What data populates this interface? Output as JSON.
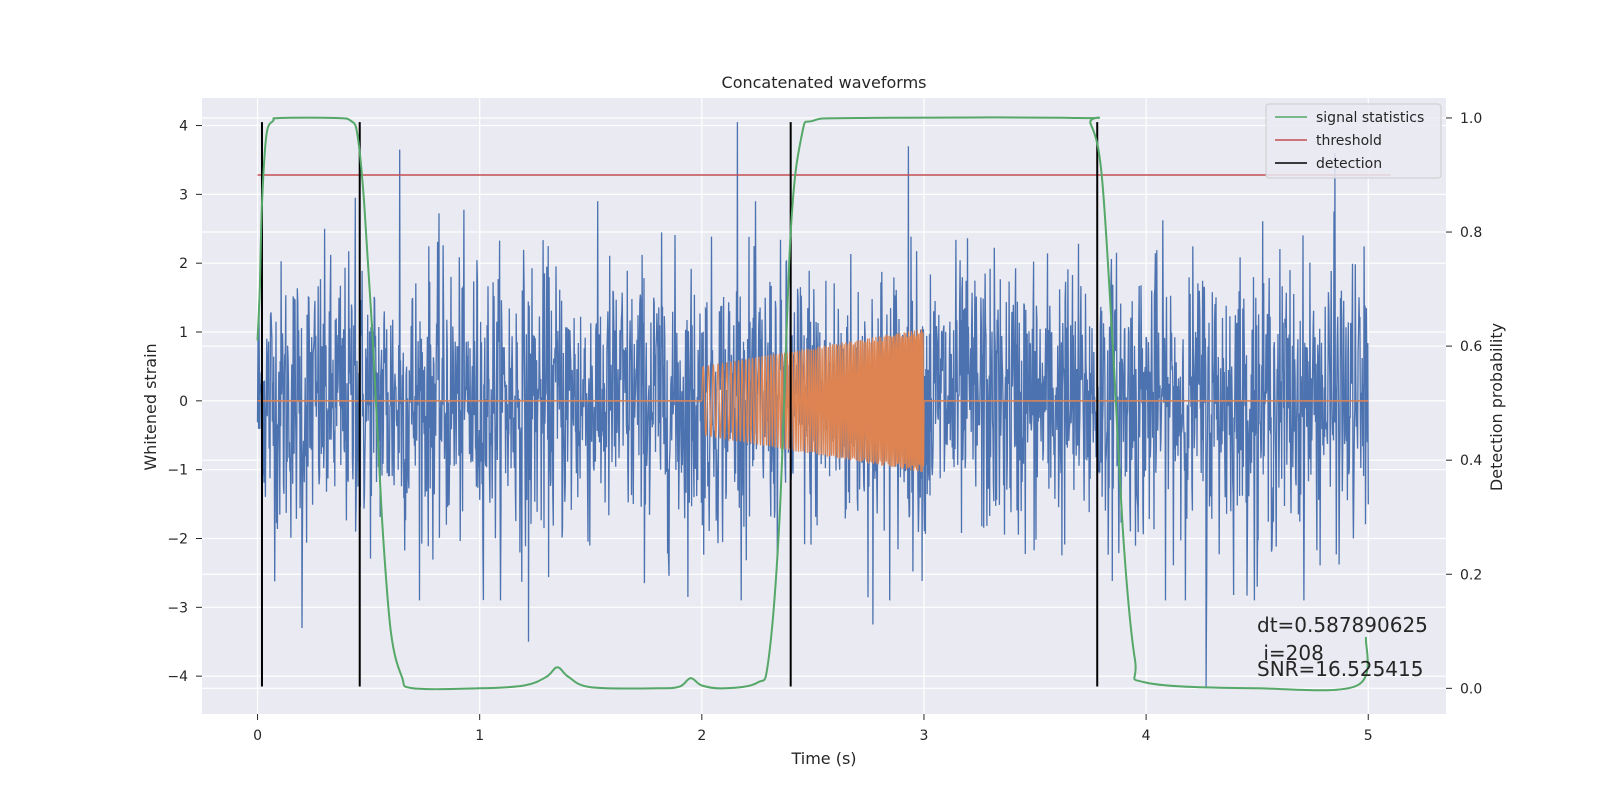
{
  "chart_data": {
    "type": "line",
    "title": "Concatenated waveforms",
    "xlabel": "Time (s)",
    "ylabel": "Whitened strain",
    "y2label": "Detection probability",
    "xlim": [
      -0.25,
      5.35
    ],
    "ylim": [
      -4.55,
      4.4
    ],
    "y2lim": [
      -0.045,
      1.035
    ],
    "x_ticks": [
      0,
      1,
      2,
      3,
      4,
      5
    ],
    "y_ticks": [
      -4,
      -3,
      -2,
      -1,
      0,
      1,
      2,
      3,
      4
    ],
    "y2_ticks": [
      0.0,
      0.2,
      0.4,
      0.6,
      0.8,
      1.0
    ],
    "y2_tick_labels": [
      "0.0",
      "0.2",
      "0.4",
      "0.6",
      "0.8",
      "1.0"
    ],
    "grid": true,
    "legend_position": "top-right",
    "colors": {
      "background": "#eaeaf2",
      "strain": "#4c72b0",
      "injection": "#dd8452",
      "signal_statistics": "#55a868",
      "threshold": "#c44e52",
      "detection": "#000000"
    },
    "strain": {
      "x_range": [
        0,
        5
      ],
      "typical_amplitude": 1.0,
      "peaks": [
        {
          "x": 0.2,
          "y": 2.9
        },
        {
          "x": 0.44,
          "y": 2.95
        },
        {
          "x": 0.64,
          "y": 3.65
        },
        {
          "x": 2.16,
          "y": 4.05
        },
        {
          "x": 2.93,
          "y": 3.7
        },
        {
          "x": 4.85,
          "y": 3.6
        },
        {
          "x": 0.2,
          "y": -3.3
        },
        {
          "x": 1.22,
          "y": -3.5
        },
        {
          "x": 2.77,
          "y": -3.25
        },
        {
          "x": 4.27,
          "y": -4.15
        },
        {
          "x": 4.5,
          "y": -2.7
        }
      ]
    },
    "injection": {
      "x_range": [
        2.0,
        3.0
      ],
      "start_amplitude": 0.5,
      "end_amplitude": 1.05,
      "baseline": 0
    },
    "series": [
      {
        "name": "signal statistics",
        "axis": "right",
        "x": [
          0,
          0.01,
          0.02,
          0.04,
          0.07,
          0.1,
          0.35,
          0.42,
          0.45,
          0.48,
          0.52,
          0.56,
          0.6,
          0.65,
          0.7,
          1.0,
          1.2,
          1.3,
          1.35,
          1.4,
          1.5,
          1.8,
          1.9,
          1.95,
          2.0,
          2.1,
          2.25,
          2.3,
          2.35,
          2.4,
          2.45,
          2.5,
          2.7,
          3.7,
          3.75,
          3.8,
          3.85,
          3.9,
          3.95,
          4.0,
          4.5,
          4.95,
          4.99
        ],
        "y": [
          0.61,
          0.7,
          0.85,
          0.97,
          0.995,
          1.0,
          1.0,
          0.995,
          0.97,
          0.85,
          0.6,
          0.3,
          0.1,
          0.02,
          0.0,
          0.0,
          0.005,
          0.02,
          0.037,
          0.02,
          0.002,
          0.0,
          0.003,
          0.018,
          0.005,
          0.0,
          0.01,
          0.05,
          0.3,
          0.8,
          0.97,
          0.995,
          1.0,
          1.0,
          0.99,
          0.9,
          0.6,
          0.25,
          0.05,
          0.01,
          0.0,
          0.005,
          0.09
        ]
      },
      {
        "name": "threshold",
        "axis": "right",
        "x": [
          0,
          5.1
        ],
        "y": [
          0.9,
          0.9
        ]
      },
      {
        "name": "detection",
        "axis": "left",
        "type": "vlines",
        "x": [
          0.02,
          0.46,
          2.4,
          3.78
        ],
        "y_range": [
          -4.15,
          4.05
        ]
      }
    ],
    "annotations": [
      "dt=0.587890625",
      " i=208",
      "SNR=16.525415"
    ]
  }
}
